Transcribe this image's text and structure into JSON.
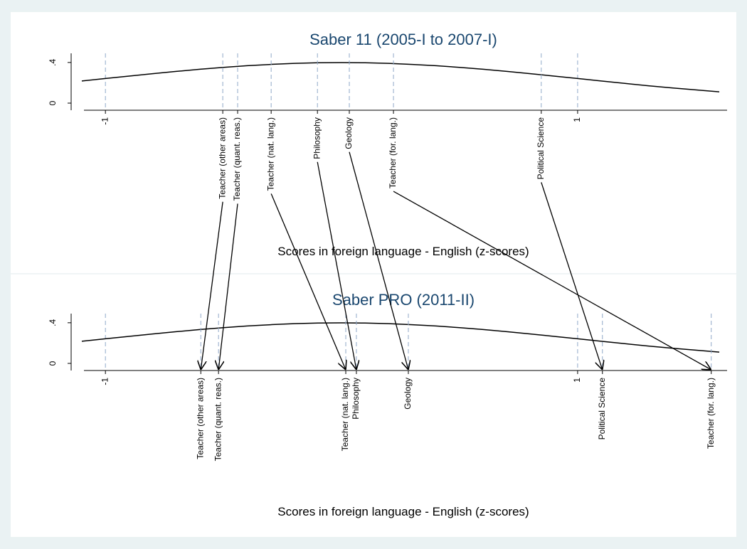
{
  "chart_data": [
    {
      "type": "line",
      "title": "Saber 11 (2005-I to 2007-I)",
      "xlabel": "Scores in foreign language - English (z-scores)",
      "xlim": [
        -1.1,
        1.63
      ],
      "ylim": [
        -0.07,
        0.49
      ],
      "xticks": [
        -1,
        1
      ],
      "yticks": [
        0,
        {
          "value": 0.4,
          "label": ".4"
        }
      ],
      "curve": {
        "x": [
          -1.1,
          -1.0,
          -0.9,
          -0.8,
          -0.7,
          -0.6,
          -0.5,
          -0.4,
          -0.3,
          -0.2,
          -0.1,
          0,
          0.1,
          0.2,
          0.3,
          0.4,
          0.5,
          0.6,
          0.7,
          0.8,
          0.9,
          1.0,
          1.1,
          1.2,
          1.3,
          1.4,
          1.5,
          1.6
        ],
        "y": [
          0.218,
          0.242,
          0.266,
          0.29,
          0.312,
          0.333,
          0.352,
          0.368,
          0.381,
          0.391,
          0.397,
          0.399,
          0.397,
          0.391,
          0.381,
          0.368,
          0.352,
          0.333,
          0.312,
          0.29,
          0.266,
          0.242,
          0.218,
          0.194,
          0.171,
          0.15,
          0.13,
          0.111
        ]
      },
      "programs": {
        "names": [
          "Teacher (other areas)",
          "Teacher (quant. reas.)",
          "Teacher (nat. lang.)",
          "Philosophy",
          "Geology",
          "Teacher (for. lang.)",
          "Political Science"
        ],
        "x": [
          -0.503,
          -0.44,
          -0.298,
          -0.102,
          0.033,
          0.22,
          0.846
        ]
      }
    },
    {
      "type": "line",
      "title": "Saber PRO (2011-II)",
      "xlabel": "Scores in foreign language - English (z-scores)",
      "xlim": [
        -1.1,
        1.63
      ],
      "ylim": [
        -0.07,
        0.49
      ],
      "xticks": [
        -1,
        1
      ],
      "yticks": [
        0,
        {
          "value": 0.4,
          "label": ".4"
        }
      ],
      "curve": {
        "x": [
          -1.1,
          -1.0,
          -0.9,
          -0.8,
          -0.7,
          -0.6,
          -0.5,
          -0.4,
          -0.3,
          -0.2,
          -0.1,
          0,
          0.1,
          0.2,
          0.3,
          0.4,
          0.5,
          0.6,
          0.7,
          0.8,
          0.9,
          1.0,
          1.1,
          1.2,
          1.3,
          1.4,
          1.5,
          1.6
        ],
        "y": [
          0.218,
          0.242,
          0.266,
          0.29,
          0.312,
          0.333,
          0.352,
          0.368,
          0.381,
          0.391,
          0.397,
          0.399,
          0.397,
          0.391,
          0.381,
          0.368,
          0.352,
          0.333,
          0.312,
          0.29,
          0.266,
          0.242,
          0.218,
          0.194,
          0.171,
          0.15,
          0.13,
          0.111
        ]
      },
      "programs": {
        "names": [
          "Teacher (other areas)",
          "Teacher (quant. reas.)",
          "Teacher (nat. lang.)",
          "Philosophy",
          "Geology",
          "Political Science",
          "Teacher (for. lang.)"
        ],
        "x": [
          -0.596,
          -0.521,
          0.018,
          0.063,
          0.283,
          1.105,
          1.566
        ]
      }
    }
  ]
}
